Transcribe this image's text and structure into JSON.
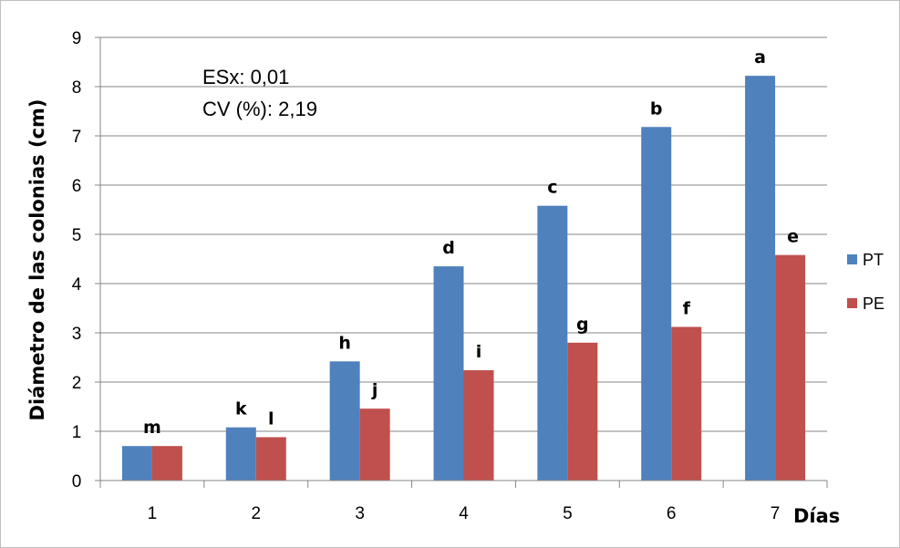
{
  "chart_data": {
    "type": "bar",
    "title": "",
    "xlabel": "Días",
    "ylabel": "Diámetro de las colonias (cm)",
    "ylim": [
      0,
      9
    ],
    "yticks": [
      0,
      1,
      2,
      3,
      4,
      5,
      6,
      7,
      8,
      9
    ],
    "categories": [
      "1",
      "2",
      "3",
      "4",
      "5",
      "6",
      "7"
    ],
    "series": [
      {
        "name": "PT",
        "color": "#4f81bd",
        "values": [
          0.7,
          1.08,
          2.42,
          4.35,
          5.58,
          7.18,
          8.22
        ],
        "labels": [
          "m",
          "k",
          "h",
          "d",
          "c",
          "b",
          "a"
        ]
      },
      {
        "name": "PE",
        "color": "#c0504d",
        "values": [
          0.7,
          0.88,
          1.46,
          2.24,
          2.8,
          3.12,
          4.58
        ],
        "labels": [
          "",
          "l",
          "j",
          "i",
          "g",
          "f",
          "e"
        ]
      }
    ],
    "annotations": [
      "ESx: 0,01",
      "CV (%): 2,19"
    ],
    "grid": true,
    "legend": "right"
  }
}
